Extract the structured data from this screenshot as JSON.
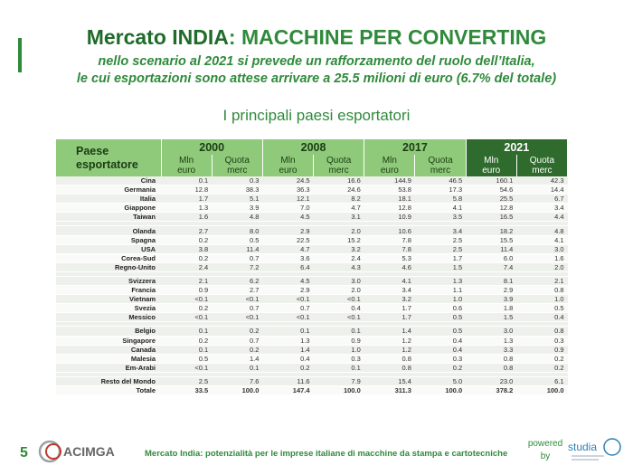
{
  "header": {
    "title_part1": "Mercato INDIA",
    "title_part2": ": MACCHINE PER CONVERTING",
    "subtitle_line1": "nello scenario al 2021 si prevede un rafforzamento del ruolo dell’Italia,",
    "subtitle_line2": "le cui esportazioni sono attese arrivare a 25.5 milioni di euro (6.7% del totale)",
    "section_title": "I principali paesi esportatori"
  },
  "table": {
    "col_country_line1": "Paese",
    "col_country_line2": "esportatore",
    "years": [
      "2000",
      "2008",
      "2017",
      "2021"
    ],
    "sub_a_line1": "Mln",
    "sub_a_line2": "euro",
    "sub_b_line1": "Quota",
    "sub_b_line2": "merc",
    "rows": [
      {
        "country": "Cina",
        "v": [
          "0.1",
          "0.3",
          "24.5",
          "16.6",
          "144.9",
          "46.5",
          "160.1",
          "42.3"
        ]
      },
      {
        "country": "Germania",
        "v": [
          "12.8",
          "38.3",
          "36.3",
          "24.6",
          "53.8",
          "17.3",
          "54.6",
          "14.4"
        ]
      },
      {
        "country": "Italia",
        "v": [
          "1.7",
          "5.1",
          "12.1",
          "8.2",
          "18.1",
          "5.8",
          "25.5",
          "6.7"
        ]
      },
      {
        "country": "Giappone",
        "v": [
          "1.3",
          "3.9",
          "7.0",
          "4.7",
          "12.8",
          "4.1",
          "12.8",
          "3.4"
        ]
      },
      {
        "country": "Taiwan",
        "v": [
          "1.6",
          "4.8",
          "4.5",
          "3.1",
          "10.9",
          "3.5",
          "16.5",
          "4.4"
        ]
      },
      {
        "gap": true
      },
      {
        "country": "Olanda",
        "v": [
          "2.7",
          "8.0",
          "2.9",
          "2.0",
          "10.6",
          "3.4",
          "18.2",
          "4.8"
        ]
      },
      {
        "country": "Spagna",
        "v": [
          "0.2",
          "0.5",
          "22.5",
          "15.2",
          "7.8",
          "2.5",
          "15.5",
          "4.1"
        ]
      },
      {
        "country": "USA",
        "v": [
          "3.8",
          "11.4",
          "4.7",
          "3.2",
          "7.8",
          "2.5",
          "11.4",
          "3.0"
        ]
      },
      {
        "country": "Corea-Sud",
        "v": [
          "0.2",
          "0.7",
          "3.6",
          "2.4",
          "5.3",
          "1.7",
          "6.0",
          "1.6"
        ]
      },
      {
        "country": "Regno-Unito",
        "v": [
          "2.4",
          "7.2",
          "6.4",
          "4.3",
          "4.6",
          "1.5",
          "7.4",
          "2.0"
        ]
      },
      {
        "gap": true
      },
      {
        "country": "Svizzera",
        "v": [
          "2.1",
          "6.2",
          "4.5",
          "3.0",
          "4.1",
          "1.3",
          "8.1",
          "2.1"
        ]
      },
      {
        "country": "Francia",
        "v": [
          "0.9",
          "2.7",
          "2.9",
          "2.0",
          "3.4",
          "1.1",
          "2.9",
          "0.8"
        ]
      },
      {
        "country": "Vietnam",
        "v": [
          "<0.1",
          "<0.1",
          "<0.1",
          "<0.1",
          "3.2",
          "1.0",
          "3.9",
          "1.0"
        ]
      },
      {
        "country": "Svezia",
        "v": [
          "0.2",
          "0.7",
          "0.7",
          "0.4",
          "1.7",
          "0.6",
          "1.8",
          "0.5"
        ]
      },
      {
        "country": "Messico",
        "v": [
          "<0.1",
          "<0.1",
          "<0.1",
          "<0.1",
          "1.7",
          "0.5",
          "1.5",
          "0.4"
        ]
      },
      {
        "gap": true
      },
      {
        "country": "Belgio",
        "v": [
          "0.1",
          "0.2",
          "0.1",
          "0.1",
          "1.4",
          "0.5",
          "3.0",
          "0.8"
        ]
      },
      {
        "country": "Singapore",
        "v": [
          "0.2",
          "0.7",
          "1.3",
          "0.9",
          "1.2",
          "0.4",
          "1.3",
          "0.3"
        ]
      },
      {
        "country": "Canada",
        "v": [
          "0.1",
          "0.2",
          "1.4",
          "1.0",
          "1.2",
          "0.4",
          "3.3",
          "0.9"
        ]
      },
      {
        "country": "Malesia",
        "v": [
          "0.5",
          "1.4",
          "0.4",
          "0.3",
          "0.8",
          "0.3",
          "0.8",
          "0.2"
        ]
      },
      {
        "country": "Em-Arabi",
        "v": [
          "<0.1",
          "0.1",
          "0.2",
          "0.1",
          "0.8",
          "0.2",
          "0.8",
          "0.2"
        ]
      },
      {
        "gap": true
      },
      {
        "country": "Resto del Mondo",
        "v": [
          "2.5",
          "7.6",
          "11.6",
          "7.9",
          "15.4",
          "5.0",
          "23.0",
          "6.1"
        ]
      },
      {
        "country": "Totale",
        "total": true,
        "v": [
          "33.5",
          "100.0",
          "147.4",
          "100.0",
          "311.3",
          "100.0",
          "378.2",
          "100.0"
        ]
      }
    ]
  },
  "footer": {
    "page_number": "5",
    "logo_text": "ACIMGA",
    "text": "Mercato India: potenzialità per le imprese italiane di macchine da stampa e cartotecniche",
    "powered_line1": "powered",
    "powered_line2": "by",
    "studio_logo_text": "studia"
  },
  "colors": {
    "accent": "#2f8a3b",
    "header_light": "#8fc97a",
    "header_dark": "#2e6b2c"
  }
}
